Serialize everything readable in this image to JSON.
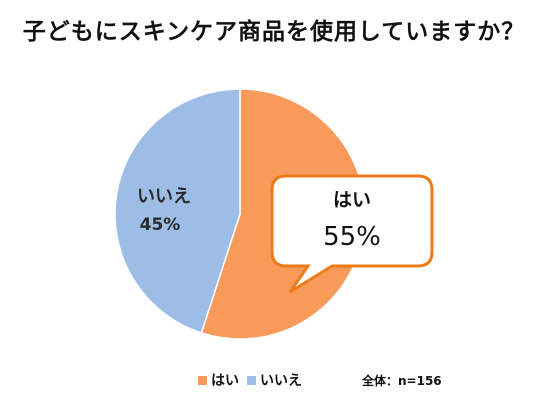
{
  "chart_data": {
    "type": "pie",
    "title": "子どもにスキンケア商品を使用していますか？",
    "slices": [
      {
        "label": "はい",
        "value": 55,
        "value_label": "55%",
        "color": "#f79a5a"
      },
      {
        "label": "いいえ",
        "value": 45,
        "value_label": "45%",
        "color": "#9dbde6"
      }
    ],
    "legend": [
      {
        "label": "はい",
        "color": "#f79a5a"
      },
      {
        "label": "いいえ",
        "color": "#9dbde6"
      }
    ],
    "legend_position": "bottom",
    "note": "全体：n=156"
  }
}
